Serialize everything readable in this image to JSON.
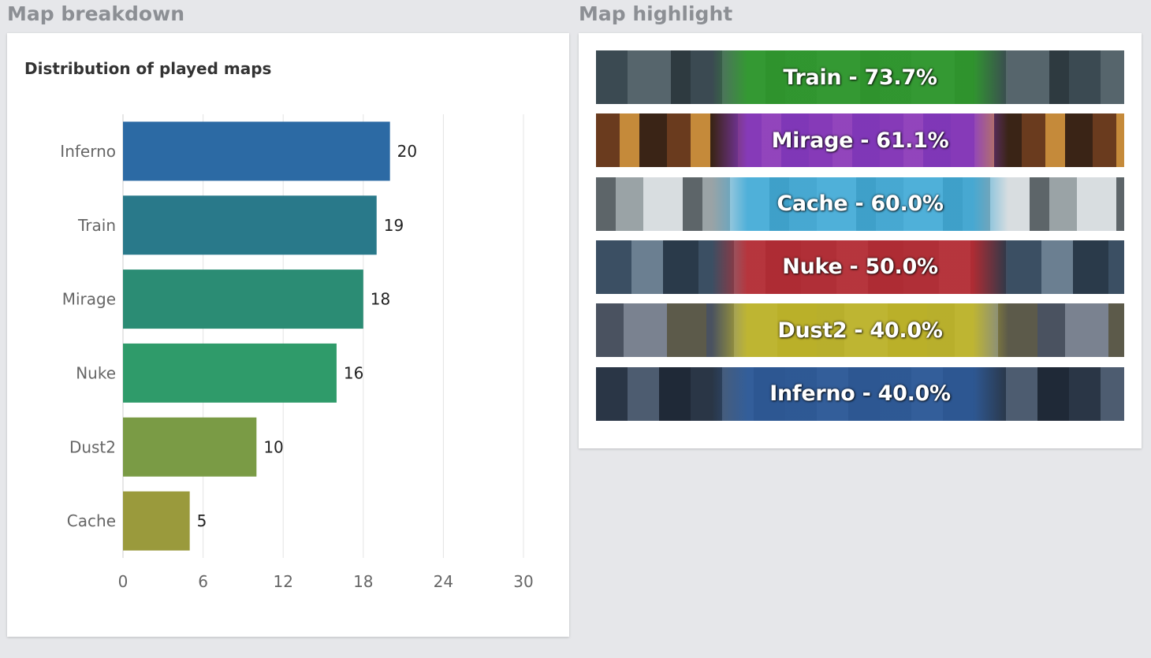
{
  "sections": {
    "breakdown_title": "Map breakdown",
    "highlight_title": "Map highlight"
  },
  "chart_data": {
    "type": "bar",
    "orientation": "horizontal",
    "title": "Distribution of played maps",
    "categories": [
      "Inferno",
      "Train",
      "Mirage",
      "Nuke",
      "Dust2",
      "Cache"
    ],
    "values": [
      20,
      19,
      18,
      16,
      10,
      5
    ],
    "colors": [
      "#2c6aa4",
      "#29798a",
      "#2b8c74",
      "#2f9b6a",
      "#7a9b45",
      "#9a9a3c"
    ],
    "xlim": [
      0,
      30
    ],
    "xticks": [
      0,
      6,
      12,
      18,
      24,
      30
    ],
    "grid": true,
    "data_labels": true
  },
  "highlights": [
    {
      "label": "Train - 73.7%",
      "map": "Train",
      "tint": "#2fa12a"
    },
    {
      "label": "Mirage - 61.1%",
      "map": "Mirage",
      "tint": "#8a3ad0"
    },
    {
      "label": "Cache - 60.0%",
      "map": "Cache",
      "tint": "#3aa9d8"
    },
    {
      "label": "Nuke - 50.0%",
      "map": "Nuke",
      "tint": "#c22a30"
    },
    {
      "label": "Dust2 - 40.0%",
      "map": "Dust2",
      "tint": "#c9bd24"
    },
    {
      "label": "Inferno - 40.0%",
      "map": "Inferno",
      "tint": "#2f5ea0"
    }
  ]
}
